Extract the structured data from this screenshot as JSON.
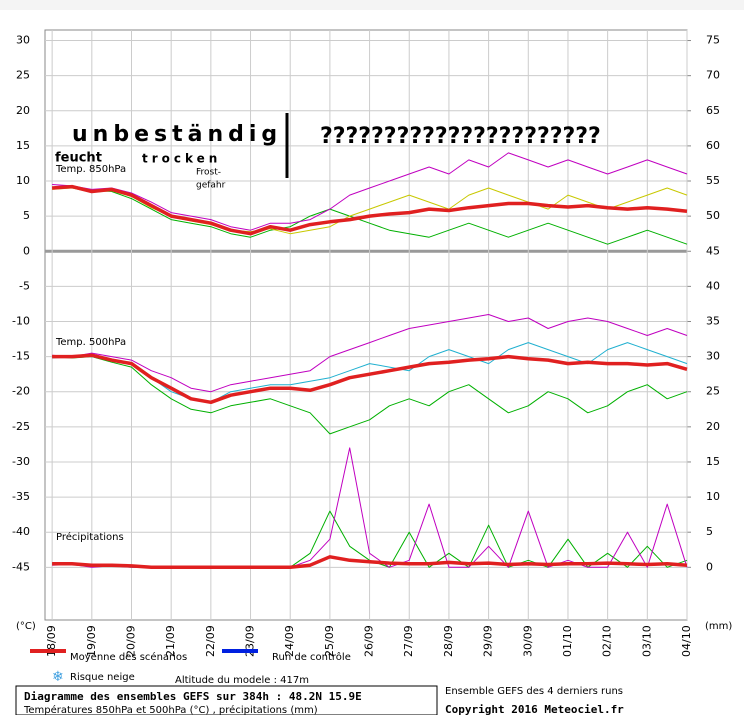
{
  "chart_data": {
    "type": "line",
    "annotations": {
      "main": "unbeständig",
      "humid": "feucht",
      "dry": "trocken",
      "frost1": "Frost-",
      "frost2": "gefahr",
      "unknown": "??????????????????????",
      "t850": "Temp. 850hPa",
      "t500": "Temp. 500hPa",
      "precip": "Précipitations",
      "yunit": "(°C)",
      "y2unit": "(mm)"
    },
    "x": [
      0,
      0.5,
      1,
      1.5,
      2,
      2.5,
      3,
      3.5,
      4,
      4.5,
      5,
      5.5,
      6,
      6.5,
      7,
      7.5,
      8,
      8.5,
      9,
      9.5,
      10,
      10.5,
      11,
      11.5,
      12,
      12.5,
      13,
      13.5,
      14,
      14.5,
      15,
      15.5,
      16
    ],
    "xlim": [
      -0.18,
      16
    ],
    "xticks": [
      {
        "value": 0,
        "label": "18/09"
      },
      {
        "value": 1,
        "label": "19/09"
      },
      {
        "value": 2,
        "label": "20/09"
      },
      {
        "value": 3,
        "label": "21/09"
      },
      {
        "value": 4,
        "label": "22/09"
      },
      {
        "value": 5,
        "label": "23/09"
      },
      {
        "value": 6,
        "label": "24/09"
      },
      {
        "value": 7,
        "label": "25/09"
      },
      {
        "value": 8,
        "label": "26/09"
      },
      {
        "value": 9,
        "label": "27/09"
      },
      {
        "value": 10,
        "label": "28/09"
      },
      {
        "value": 11,
        "label": "29/09"
      },
      {
        "value": 12,
        "label": "30/09"
      },
      {
        "value": 13,
        "label": "01/10"
      },
      {
        "value": 14,
        "label": "02/10"
      },
      {
        "value": 15,
        "label": "03/10"
      },
      {
        "value": 16,
        "label": "04/10"
      }
    ],
    "ylim": [
      -52.5,
      31.5
    ],
    "yticks": [
      30,
      25,
      20,
      15,
      10,
      5,
      0,
      -5,
      -10,
      -15,
      -20,
      -25,
      -30,
      -35,
      -40,
      -45
    ],
    "y2lim": [
      -7.5,
      76.5
    ],
    "y2ticks": [
      75,
      70,
      65,
      60,
      55,
      50,
      45,
      40,
      35,
      30,
      25,
      20,
      15,
      10,
      5,
      0
    ],
    "grid": true,
    "series": [
      {
        "color": "#00b000",
        "values": [
          9,
          9,
          8.7,
          8.5,
          7.5,
          6,
          4.5,
          4,
          3.5,
          2.5,
          2,
          3,
          3.5,
          5,
          6,
          5,
          4,
          3,
          2.5,
          2,
          3,
          4,
          3,
          2,
          3,
          4,
          3,
          2,
          1,
          2,
          3,
          2,
          1
        ]
      },
      {
        "color": "#c000c0",
        "values": [
          9.5,
          9.3,
          8.8,
          9,
          8.3,
          7,
          5.5,
          5,
          4.5,
          3.5,
          3,
          4,
          4,
          4.5,
          6,
          8,
          9,
          10,
          11,
          12,
          11,
          13,
          12,
          14,
          13,
          12,
          13,
          12,
          11,
          12,
          13,
          12,
          11
        ]
      },
      {
        "color": "#c8c800",
        "values": [
          8.8,
          9,
          8.4,
          8.6,
          7.8,
          6.2,
          5,
          4.3,
          3.8,
          3,
          2.8,
          3.2,
          2.5,
          3,
          3.5,
          5,
          6,
          7,
          8,
          7,
          6,
          8,
          9,
          8,
          7,
          6,
          8,
          7,
          6,
          7,
          8,
          9,
          8
        ]
      },
      {
        "color": "#00b000",
        "values": [
          -15,
          -15.2,
          -15,
          -15.8,
          -16.5,
          -19,
          -21,
          -22.5,
          -23,
          -22,
          -21.5,
          -21,
          -22,
          -23,
          -26,
          -25,
          -24,
          -22,
          -21,
          -22,
          -20,
          -19,
          -21,
          -23,
          -22,
          -20,
          -21,
          -23,
          -22,
          -20,
          -19,
          -21,
          -20
        ]
      },
      {
        "color": "#c000c0",
        "values": [
          -14.8,
          -15,
          -14.5,
          -15,
          -15.5,
          -17,
          -18,
          -19.5,
          -20,
          -19,
          -18.5,
          -18,
          -17.5,
          -17,
          -15,
          -14,
          -13,
          -12,
          -11,
          -10.5,
          -10,
          -9.5,
          -9,
          -10,
          -9.5,
          -11,
          -10,
          -9.5,
          -10,
          -11,
          -12,
          -11,
          -12
        ]
      },
      {
        "color": "#20b0d0",
        "values": [
          -15.2,
          -15,
          -15,
          -15.5,
          -16,
          -18,
          -20,
          -21,
          -21.5,
          -20,
          -19.5,
          -19,
          -19,
          -18.5,
          -18,
          -17,
          -16,
          -16.5,
          -17,
          -15,
          -14,
          -15,
          -16,
          -14,
          -13,
          -14,
          -15,
          -16,
          -14,
          -13,
          -14,
          -15,
          -16
        ]
      },
      {
        "color": "#00b000",
        "axis": "y2",
        "values": [
          0.5,
          0.5,
          0.2,
          0.3,
          0,
          0,
          0,
          0,
          0,
          0,
          0,
          0,
          0,
          2,
          8,
          3,
          1,
          0,
          5,
          0,
          2,
          0,
          6,
          0,
          1,
          0,
          4,
          0,
          2,
          0,
          3,
          0,
          1
        ]
      },
      {
        "color": "#c000c0",
        "axis": "y2",
        "values": [
          0.3,
          0.4,
          0,
          0.2,
          0,
          0,
          0,
          0,
          0,
          0,
          0,
          0,
          0,
          1,
          4,
          17,
          2,
          0,
          1,
          9,
          0,
          0,
          3,
          0,
          8,
          0,
          1,
          0,
          0,
          5,
          0,
          9,
          0
        ]
      },
      {
        "color": "#e02020",
        "width": 3.5,
        "values": [
          9,
          9.2,
          8.5,
          8.8,
          8,
          6.5,
          5,
          4.5,
          4,
          3,
          2.5,
          3.5,
          3,
          3.8,
          4.2,
          4.5,
          5,
          5.3,
          5.5,
          6,
          5.8,
          6.2,
          6.5,
          6.8,
          6.8,
          6.5,
          6.3,
          6.5,
          6.2,
          6,
          6.2,
          6,
          5.7
        ]
      },
      {
        "color": "#e02020",
        "width": 3.5,
        "values": [
          -15,
          -15,
          -14.8,
          -15.5,
          -16,
          -18,
          -19.5,
          -21,
          -21.5,
          -20.5,
          -20,
          -19.5,
          -19.5,
          -19.8,
          -19,
          -18,
          -17.5,
          -17,
          -16.5,
          -16,
          -15.8,
          -15.5,
          -15.3,
          -15,
          -15.3,
          -15.5,
          -16,
          -15.8,
          -16,
          -16,
          -16.2,
          -16,
          -16.8
        ]
      },
      {
        "color": "#e02020",
        "width": 3.5,
        "axis": "y2",
        "values": [
          0.5,
          0.5,
          0.3,
          0.3,
          0.2,
          0,
          0,
          0,
          0,
          0,
          0,
          0,
          0,
          0.3,
          1.5,
          1,
          0.8,
          0.6,
          0.5,
          0.5,
          0.7,
          0.5,
          0.6,
          0.4,
          0.5,
          0.4,
          0.5,
          0.5,
          0.6,
          0.5,
          0.4,
          0.5,
          0.3
        ]
      }
    ],
    "legend": [
      {
        "name": "Moyenne des scénarios",
        "color": "#e02020"
      },
      {
        "name": "Run de contrôle",
        "color": "#0020e0"
      }
    ],
    "notes": {
      "snow": "Risque neige",
      "altitude": "Altitude du modele : 417m"
    },
    "footer": {
      "title": "Diagramme des ensembles GEFS sur 384h : 48.2N 15.9E",
      "subtitle": "Températures 850hPa et 500hPa (°C) , précipitations (mm)",
      "runs": "Ensemble GEFS des 4 derniers runs",
      "copyright": "Copyright 2016 Meteociel.fr"
    }
  }
}
